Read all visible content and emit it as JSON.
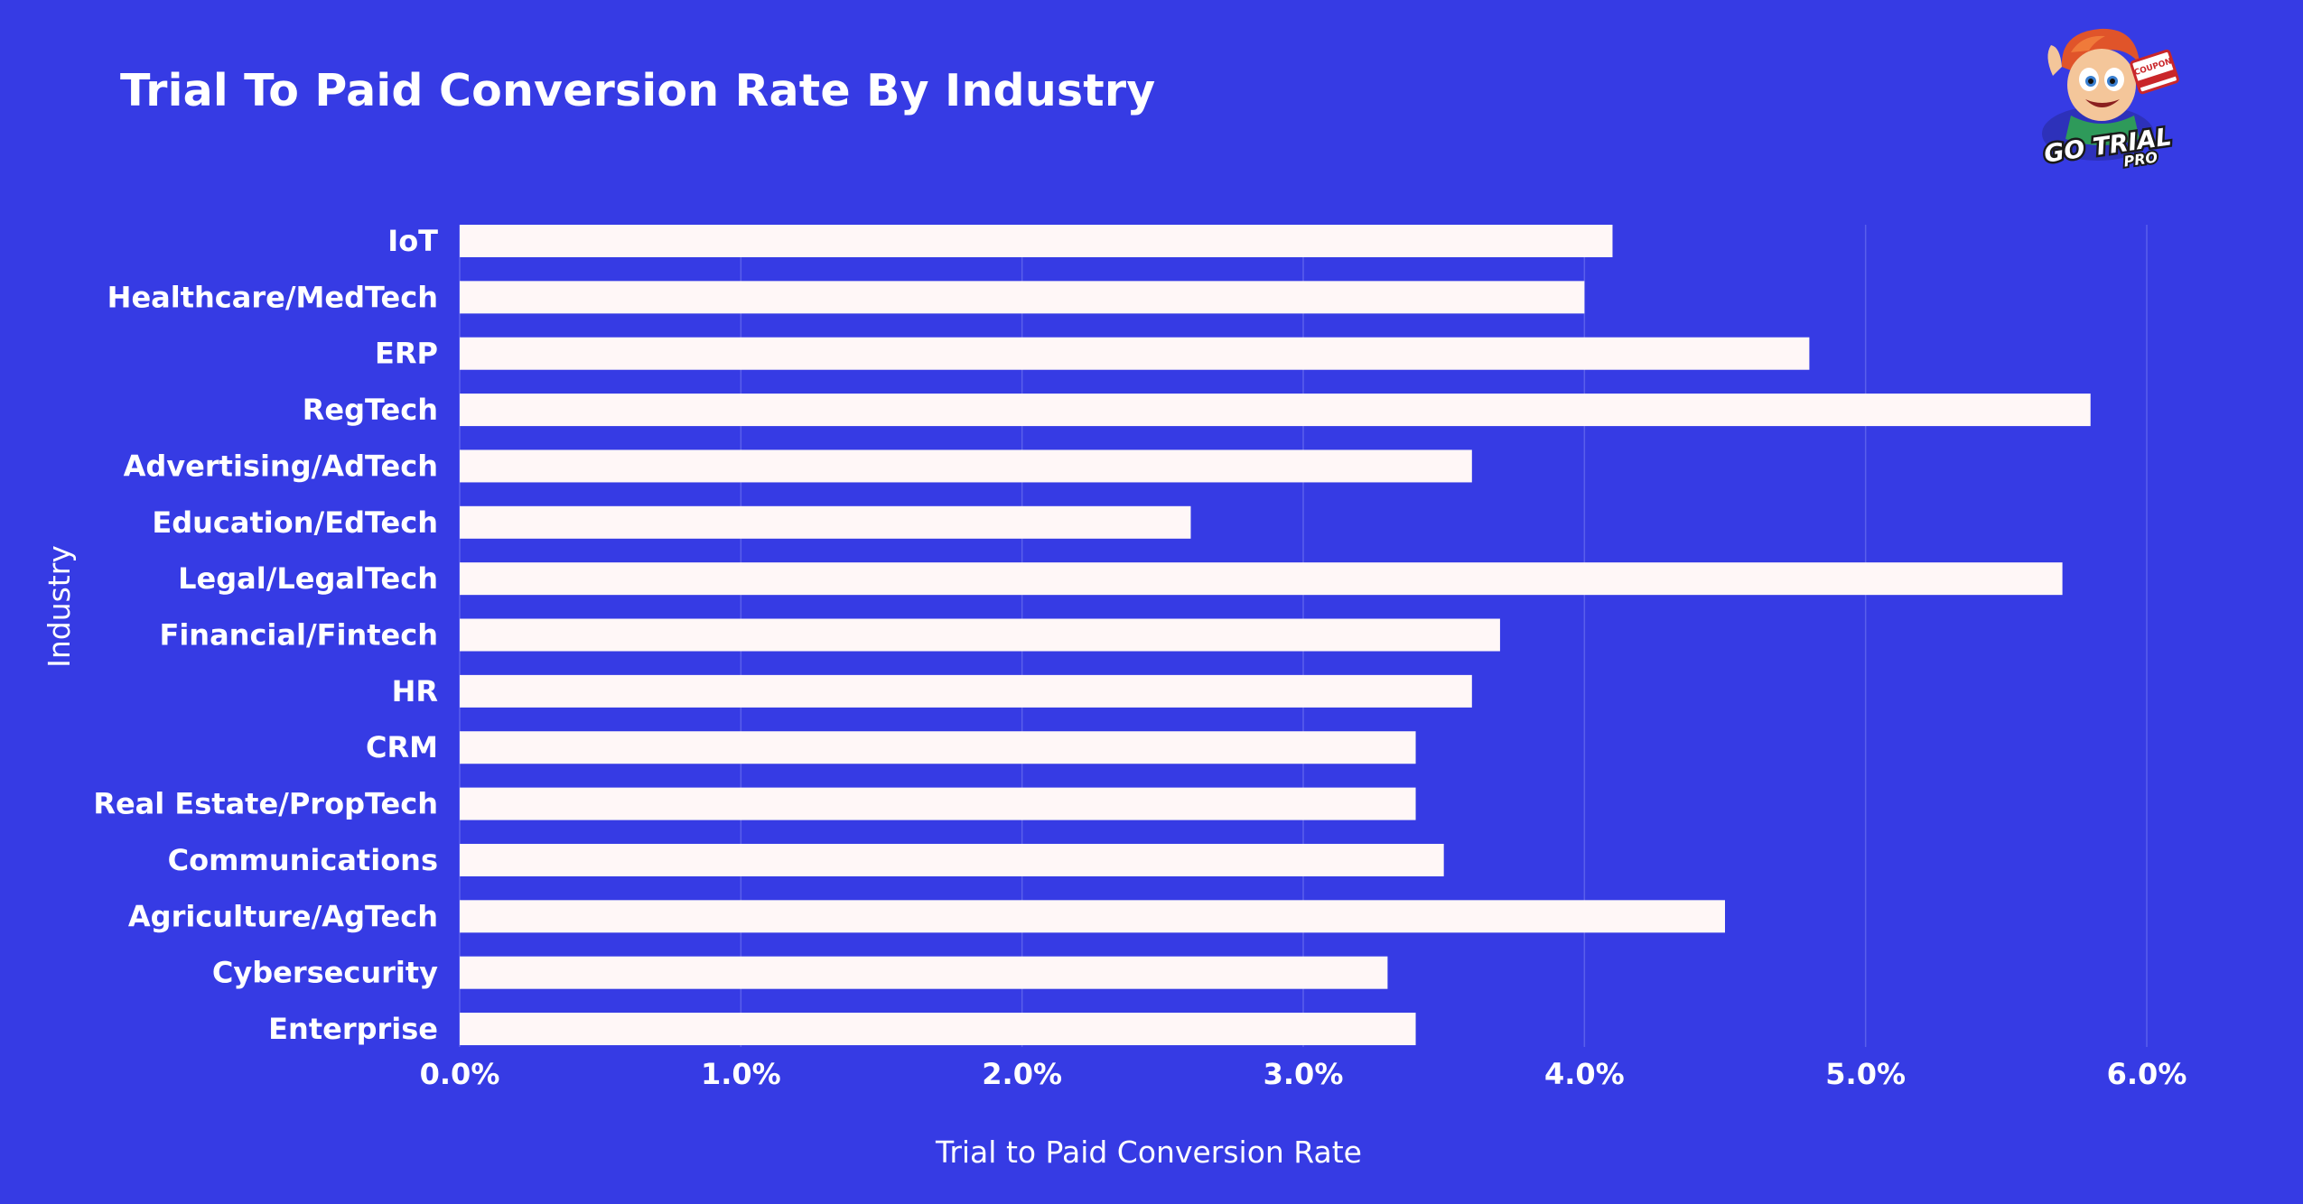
{
  "title": "Trial To Paid Conversion Rate By Industry",
  "logo": {
    "icon": "go-trial-pro-mascot-logo",
    "text_main": "GO TRIAL",
    "text_sub": "PRO",
    "badge_text": "COUPON"
  },
  "colors": {
    "background": "#363BE4",
    "bar": "#FFF7F7",
    "grid": "#5A5FEB",
    "text": "#FFFFFF"
  },
  "chart_data": {
    "type": "bar",
    "orientation": "horizontal",
    "title": "Trial To Paid Conversion Rate By Industry",
    "xlabel": "Trial to Paid Conversion Rate",
    "ylabel": "Industry",
    "categories": [
      "IoT",
      "Healthcare/MedTech",
      "ERP",
      "RegTech",
      "Advertising/AdTech",
      "Education/EdTech",
      "Legal/LegalTech",
      "Financial/Fintech",
      "HR",
      "CRM",
      "Real Estate/PropTech",
      "Communications",
      "Agriculture/AgTech",
      "Cybersecurity",
      "Enterprise"
    ],
    "values": [
      4.1,
      4.0,
      4.8,
      5.8,
      3.6,
      2.6,
      5.7,
      3.7,
      3.6,
      3.4,
      3.4,
      3.5,
      4.5,
      3.3,
      3.4
    ],
    "unit": "%",
    "xlim": [
      0,
      6
    ],
    "xticks": [
      0,
      1,
      2,
      3,
      4,
      5,
      6
    ],
    "xtick_labels": [
      "0.0%",
      "1.0%",
      "2.0%",
      "3.0%",
      "4.0%",
      "5.0%",
      "6.0%"
    ],
    "grid": "vertical",
    "legend": "none"
  }
}
